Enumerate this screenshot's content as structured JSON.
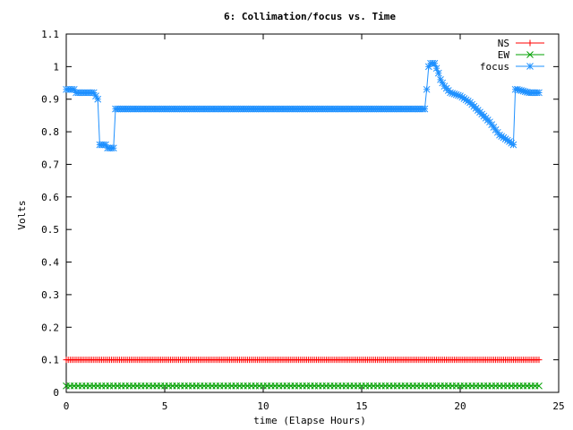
{
  "chart_data": {
    "type": "line",
    "title": "6: Collimation/focus vs. Time",
    "xlabel": "time (Elapse Hours)",
    "ylabel": "Volts",
    "xlim": [
      0,
      25
    ],
    "ylim": [
      0,
      1.1
    ],
    "x_ticks": [
      "0",
      "5",
      "10",
      "15",
      "20",
      "25"
    ],
    "y_ticks": [
      "0",
      "0.1",
      "0.2",
      "0.3",
      "0.4",
      "0.5",
      "0.6",
      "0.7",
      "0.8",
      "0.9",
      "1",
      "1.1"
    ],
    "grid": false,
    "legend_position": "top-right",
    "series": [
      {
        "name": "NS",
        "color": "#ff0000",
        "marker": "plus",
        "x": [
          0,
          24
        ],
        "y": [
          0.1,
          0.1
        ],
        "sampling_step": 0.1
      },
      {
        "name": "EW",
        "color": "#00a000",
        "marker": "cross",
        "x": [
          0,
          24
        ],
        "y": [
          0.02,
          0.02
        ],
        "sampling_step": 0.2
      },
      {
        "name": "focus",
        "color": "#1e90ff",
        "marker": "star",
        "x": [
          0,
          0.4,
          0.5,
          1.4,
          1.5,
          1.6,
          1.7,
          1.8,
          2.0,
          2.1,
          2.2,
          2.4,
          2.5,
          2.6,
          18.2,
          18.3,
          18.4,
          18.5,
          18.7,
          18.9,
          19.0,
          19.2,
          19.5,
          20.0,
          20.5,
          21.0,
          21.5,
          22.0,
          22.5,
          22.7,
          22.8,
          22.9,
          23.5,
          24
        ],
        "y": [
          0.93,
          0.93,
          0.92,
          0.92,
          0.91,
          0.9,
          0.76,
          0.76,
          0.76,
          0.75,
          0.75,
          0.75,
          0.87,
          0.87,
          0.87,
          0.93,
          1.0,
          1.01,
          1.01,
          0.98,
          0.96,
          0.94,
          0.92,
          0.91,
          0.89,
          0.86,
          0.83,
          0.79,
          0.77,
          0.76,
          0.93,
          0.93,
          0.92,
          0.92
        ],
        "sampling_step": 0.1
      }
    ]
  }
}
